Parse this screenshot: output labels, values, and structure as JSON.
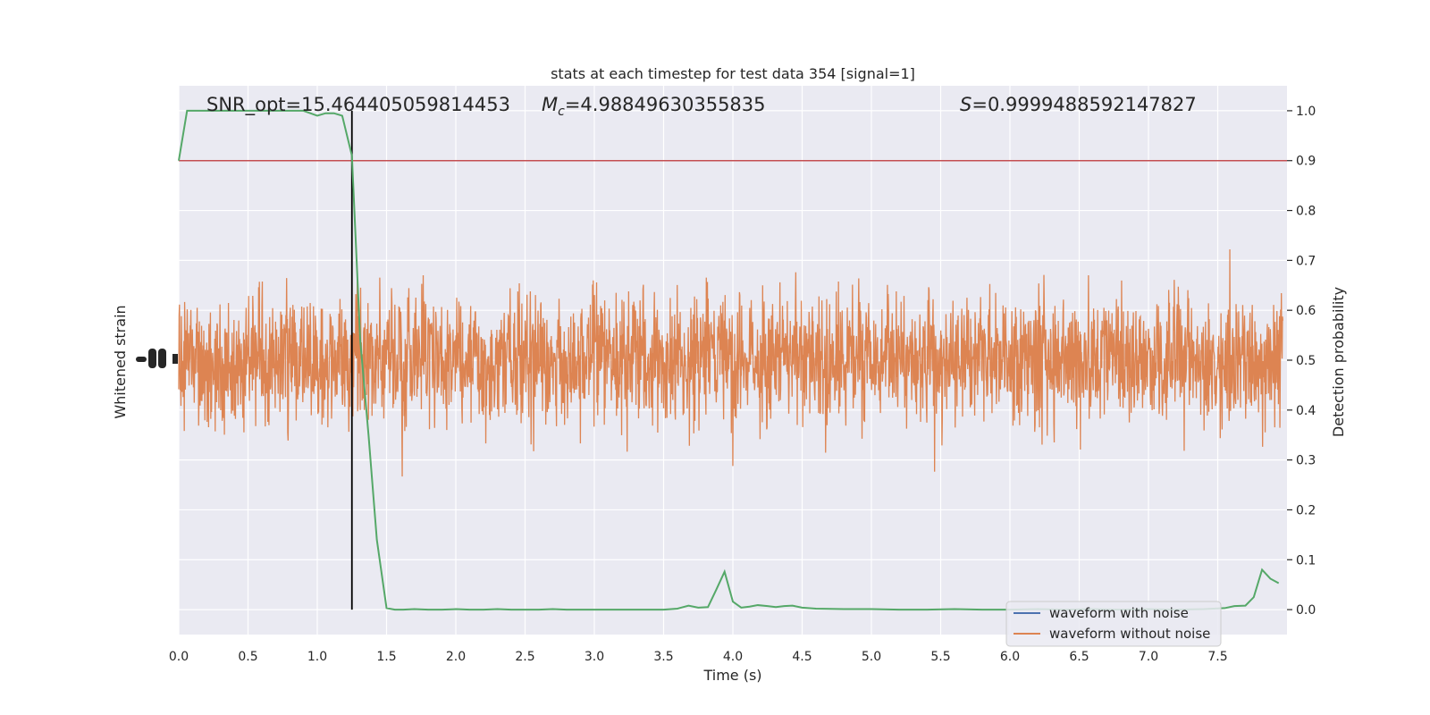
{
  "chart_data": {
    "type": "line",
    "title": "stats at each timestep for test data 354 [signal=1]",
    "xlabel": "Time (s)",
    "ylabel_left": "Whitened strain",
    "ylabel_right": "Detection probability",
    "xlim": [
      0.0,
      8.0
    ],
    "ylim_right": [
      -0.05,
      1.05
    ],
    "x_ticks": [
      "0.0",
      "0.5",
      "1.0",
      "1.5",
      "2.0",
      "2.5",
      "3.0",
      "3.5",
      "4.0",
      "4.5",
      "5.0",
      "5.5",
      "6.0",
      "6.5",
      "7.0",
      "7.5"
    ],
    "y_right_ticks": [
      "0.0",
      "0.1",
      "0.2",
      "0.3",
      "0.4",
      "0.5",
      "0.6",
      "0.7",
      "0.8",
      "0.9",
      "1.0"
    ],
    "grid": true,
    "annotations": {
      "snr": "SNR_opt=15.464405059814453",
      "mc_symbol": "M",
      "mc_sub": "c",
      "mc_value": "=4.98849630355835",
      "s_symbol": "S",
      "s_value": "=0.9999488592147827"
    },
    "threshold": {
      "value": 0.9,
      "color": "#c44e52"
    },
    "vline_x": 1.25,
    "legend": {
      "placement": "lower-right",
      "entries": [
        {
          "label": "waveform with noise",
          "color": "#4c72b0"
        },
        {
          "label": "waveform without noise",
          "color": "#dd8452"
        }
      ]
    },
    "noise_series": {
      "color": "#dd8452",
      "center": 0.5,
      "spread": 0.11,
      "samples": 3000
    },
    "probability_series": {
      "color": "#55a868",
      "x": [
        0.0,
        0.06,
        0.12,
        0.2,
        0.3,
        0.4,
        0.5,
        0.6,
        0.7,
        0.8,
        0.9,
        1.0,
        1.06,
        1.12,
        1.18,
        1.25,
        1.31,
        1.37,
        1.43,
        1.5,
        1.56,
        1.62,
        1.7,
        1.8,
        1.9,
        2.0,
        2.1,
        2.2,
        2.3,
        2.4,
        2.5,
        2.6,
        2.7,
        2.8,
        2.9,
        3.0,
        3.1,
        3.2,
        3.3,
        3.4,
        3.5,
        3.6,
        3.68,
        3.75,
        3.82,
        3.88,
        3.94,
        4.0,
        4.06,
        4.12,
        4.18,
        4.25,
        4.31,
        4.37,
        4.43,
        4.5,
        4.6,
        4.8,
        5.0,
        5.2,
        5.4,
        5.6,
        5.8,
        6.0,
        6.2,
        6.4,
        6.6,
        6.8,
        7.0,
        7.2,
        7.4,
        7.55,
        7.62,
        7.7,
        7.76,
        7.82,
        7.88,
        7.94
      ],
      "y": [
        0.9,
        1.0,
        1.0,
        1.0,
        1.0,
        1.0,
        1.0,
        1.0,
        1.0,
        1.0,
        1.0,
        0.99,
        0.995,
        0.995,
        0.99,
        0.91,
        0.54,
        0.35,
        0.14,
        0.003,
        0.0,
        0.0,
        0.001,
        0.0,
        0.0,
        0.001,
        0.0,
        0.0,
        0.001,
        0.0,
        0.0,
        0.0,
        0.001,
        0.0,
        0.0,
        0.0,
        0.0,
        0.0,
        0.0,
        0.0,
        0.0,
        0.002,
        0.008,
        0.004,
        0.005,
        0.04,
        0.076,
        0.016,
        0.004,
        0.006,
        0.009,
        0.007,
        0.005,
        0.007,
        0.008,
        0.004,
        0.002,
        0.001,
        0.001,
        0.0,
        0.0,
        0.001,
        0.0,
        0.0,
        0.001,
        0.0,
        0.001,
        0.0,
        0.001,
        0.0,
        0.001,
        0.003,
        0.007,
        0.008,
        0.025,
        0.08,
        0.062,
        0.053
      ]
    }
  }
}
